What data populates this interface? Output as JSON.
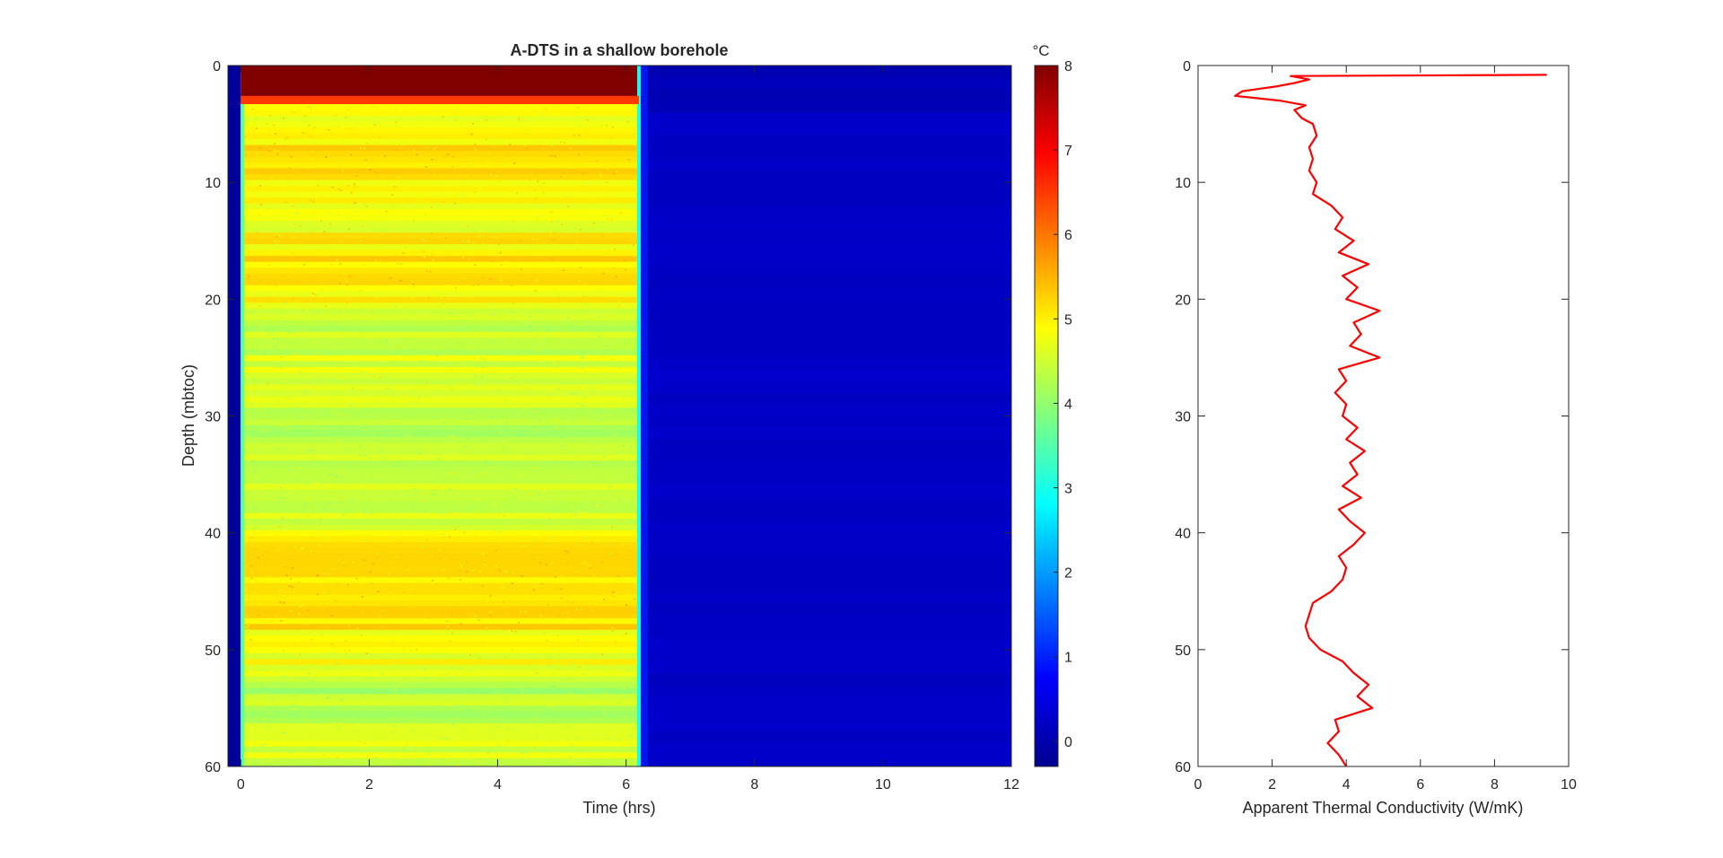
{
  "chart_data": [
    {
      "type": "heatmap",
      "title": "A-DTS in a shallow borehole",
      "xlabel": "Time (hrs)",
      "ylabel": "Depth (mbtoc)",
      "xlim": [
        -0.2,
        12
      ],
      "ylim": [
        0,
        60
      ],
      "y_reversed": true,
      "x_ticks": [
        0,
        2,
        4,
        6,
        8,
        10,
        12
      ],
      "y_ticks": [
        0,
        10,
        20,
        30,
        40,
        50,
        60
      ],
      "colorbar": {
        "unit_label": "°C",
        "range": [
          -0.3,
          8
        ],
        "ticks": [
          0,
          1,
          2,
          3,
          4,
          5,
          6,
          7,
          8
        ],
        "colormap": "jet"
      },
      "regions": [
        {
          "x": [
            -0.2,
            0.0
          ],
          "depth": [
            0,
            60
          ],
          "value": -0.2
        },
        {
          "x": [
            0.0,
            6.2
          ],
          "depth": [
            0,
            3.3
          ],
          "value": 8.0
        },
        {
          "x": [
            0.0,
            6.2
          ],
          "depth": [
            3.3,
            60
          ],
          "value": 4.8
        },
        {
          "x": [
            6.2,
            12
          ],
          "depth": [
            0,
            60
          ],
          "value": 0.2
        }
      ],
      "depth_profile_heated": [
        {
          "depth": 4,
          "value": 4.9
        },
        {
          "depth": 8,
          "value": 5.2
        },
        {
          "depth": 13,
          "value": 4.8
        },
        {
          "depth": 18,
          "value": 5.2
        },
        {
          "depth": 22,
          "value": 4.4
        },
        {
          "depth": 27,
          "value": 4.6
        },
        {
          "depth": 33,
          "value": 4.3
        },
        {
          "depth": 38,
          "value": 4.5
        },
        {
          "depth": 44,
          "value": 5.3
        },
        {
          "depth": 46,
          "value": 5.2
        },
        {
          "depth": 50,
          "value": 4.9
        },
        {
          "depth": 53,
          "value": 4.2
        },
        {
          "depth": 57,
          "value": 4.5
        },
        {
          "depth": 60,
          "value": 4.6
        }
      ]
    },
    {
      "type": "line",
      "xlabel": "Apparent Thermal Conductivity (W/mK)",
      "ylabel": "",
      "xlim": [
        0,
        10
      ],
      "ylim": [
        0,
        60
      ],
      "y_reversed": true,
      "x_ticks": [
        0,
        2,
        4,
        6,
        8,
        10
      ],
      "y_ticks": [
        0,
        10,
        20,
        30,
        40,
        50,
        60
      ],
      "series": [
        {
          "color": "#ff0000",
          "points": [
            {
              "depth": 0.8,
              "value": 9.4
            },
            {
              "depth": 0.9,
              "value": 2.5
            },
            {
              "depth": 1.2,
              "value": 3.0
            },
            {
              "depth": 1.5,
              "value": 2.6
            },
            {
              "depth": 1.8,
              "value": 2.1
            },
            {
              "depth": 2.2,
              "value": 1.2
            },
            {
              "depth": 2.6,
              "value": 1.0
            },
            {
              "depth": 3.0,
              "value": 2.2
            },
            {
              "depth": 3.4,
              "value": 2.9
            },
            {
              "depth": 3.8,
              "value": 2.6
            },
            {
              "depth": 4.5,
              "value": 2.8
            },
            {
              "depth": 5.0,
              "value": 3.1
            },
            {
              "depth": 6.0,
              "value": 3.2
            },
            {
              "depth": 7.0,
              "value": 3.0
            },
            {
              "depth": 8.0,
              "value": 3.1
            },
            {
              "depth": 9.0,
              "value": 3.0
            },
            {
              "depth": 10.0,
              "value": 3.2
            },
            {
              "depth": 11.0,
              "value": 3.1
            },
            {
              "depth": 12.0,
              "value": 3.6
            },
            {
              "depth": 13.0,
              "value": 3.9
            },
            {
              "depth": 14.0,
              "value": 3.7
            },
            {
              "depth": 15.0,
              "value": 4.2
            },
            {
              "depth": 16.0,
              "value": 3.8
            },
            {
              "depth": 17.0,
              "value": 4.6
            },
            {
              "depth": 18.0,
              "value": 3.9
            },
            {
              "depth": 19.0,
              "value": 4.3
            },
            {
              "depth": 20.0,
              "value": 4.0
            },
            {
              "depth": 21.0,
              "value": 4.9
            },
            {
              "depth": 22.0,
              "value": 4.2
            },
            {
              "depth": 23.0,
              "value": 4.4
            },
            {
              "depth": 24.0,
              "value": 4.1
            },
            {
              "depth": 25.0,
              "value": 4.9
            },
            {
              "depth": 26.0,
              "value": 3.8
            },
            {
              "depth": 27.0,
              "value": 4.0
            },
            {
              "depth": 28.0,
              "value": 3.7
            },
            {
              "depth": 29.0,
              "value": 4.0
            },
            {
              "depth": 30.0,
              "value": 3.9
            },
            {
              "depth": 31.0,
              "value": 4.3
            },
            {
              "depth": 32.0,
              "value": 4.0
            },
            {
              "depth": 33.0,
              "value": 4.5
            },
            {
              "depth": 34.0,
              "value": 4.1
            },
            {
              "depth": 35.0,
              "value": 4.3
            },
            {
              "depth": 36.0,
              "value": 3.9
            },
            {
              "depth": 37.0,
              "value": 4.4
            },
            {
              "depth": 38.0,
              "value": 3.8
            },
            {
              "depth": 39.0,
              "value": 4.1
            },
            {
              "depth": 40.0,
              "value": 4.5
            },
            {
              "depth": 41.0,
              "value": 4.2
            },
            {
              "depth": 42.0,
              "value": 3.8
            },
            {
              "depth": 43.0,
              "value": 4.0
            },
            {
              "depth": 44.0,
              "value": 3.9
            },
            {
              "depth": 45.0,
              "value": 3.6
            },
            {
              "depth": 46.0,
              "value": 3.1
            },
            {
              "depth": 47.0,
              "value": 3.0
            },
            {
              "depth": 48.0,
              "value": 2.9
            },
            {
              "depth": 49.0,
              "value": 3.0
            },
            {
              "depth": 50.0,
              "value": 3.3
            },
            {
              "depth": 51.0,
              "value": 3.9
            },
            {
              "depth": 52.0,
              "value": 4.2
            },
            {
              "depth": 53.0,
              "value": 4.6
            },
            {
              "depth": 54.0,
              "value": 4.3
            },
            {
              "depth": 55.0,
              "value": 4.7
            },
            {
              "depth": 56.0,
              "value": 3.7
            },
            {
              "depth": 57.0,
              "value": 3.8
            },
            {
              "depth": 58.0,
              "value": 3.5
            },
            {
              "depth": 59.0,
              "value": 3.8
            },
            {
              "depth": 60.0,
              "value": 4.0
            }
          ]
        }
      ]
    }
  ]
}
